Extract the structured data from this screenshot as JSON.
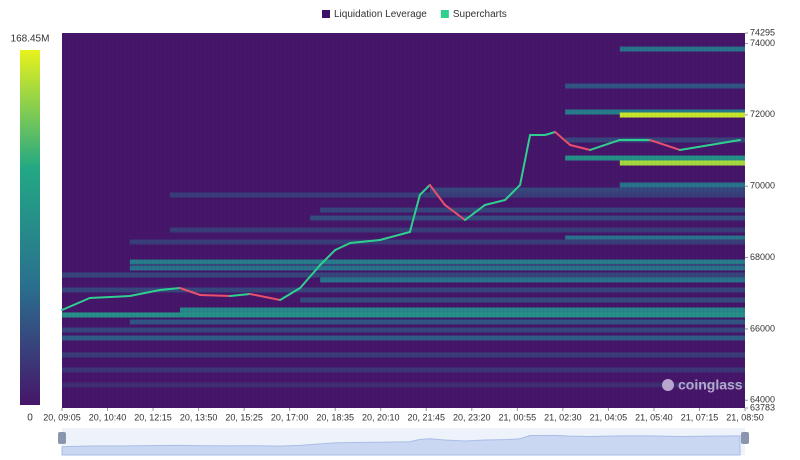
{
  "chart_data": {
    "type": "heatmap",
    "legend": [
      {
        "name": "Liquidation Leverage",
        "color": "#3d1163"
      },
      {
        "name": "Supercharts",
        "color": "#2fd08f"
      }
    ],
    "watermark": "coinglass",
    "background": "#46166a",
    "colorscale": [
      "#46166a",
      "#2a6f8e",
      "#22a884",
      "#e8f21c"
    ],
    "clim": [
      0,
      {
        "value": 168450000,
        "label": "168.45M"
      }
    ],
    "xlim": [
      0,
      15
    ],
    "xticks": [
      {
        "value": 0,
        "label": "20, 09:05"
      },
      {
        "value": 1,
        "label": "20, 10:40"
      },
      {
        "value": 2,
        "label": "20, 12:15"
      },
      {
        "value": 3,
        "label": "20, 13:50"
      },
      {
        "value": 4,
        "label": "20, 15:25"
      },
      {
        "value": 5,
        "label": "20, 17:00"
      },
      {
        "value": 6,
        "label": "20, 18:35"
      },
      {
        "value": 7,
        "label": "20, 20:10"
      },
      {
        "value": 8,
        "label": "20, 21:45"
      },
      {
        "value": 9,
        "label": "20, 23:20"
      },
      {
        "value": 10,
        "label": "21, 00:55"
      },
      {
        "value": 11,
        "label": "21, 02:30"
      },
      {
        "value": 12,
        "label": "21, 04:05"
      },
      {
        "value": 13,
        "label": "21, 05:40"
      },
      {
        "value": 14,
        "label": "21, 07:15"
      },
      {
        "value": 15,
        "label": "21, 08:50"
      }
    ],
    "ylim": [
      63783,
      74295
    ],
    "yticks": [
      63783,
      64000,
      66000,
      68000,
      70000,
      72000,
      74000,
      74295
    ],
    "bands": {
      "prices": [
        73846,
        72810,
        72080,
        71996,
        71296,
        70791,
        70651,
        70035,
        69894,
        69753,
        69333,
        69109,
        68773,
        68549,
        68437,
        67876,
        67708,
        67512,
        67372,
        67092,
        66811,
        66531,
        66391,
        66194,
        65970,
        65746,
        65270,
        64850,
        64430
      ],
      "starts": [
        12.25,
        11.05,
        11.05,
        12.25,
        11.05,
        11.05,
        12.25,
        12.25,
        8.08,
        2.37,
        5.67,
        5.45,
        2.37,
        11.05,
        1.49,
        1.49,
        1.49,
        0,
        5.67,
        0,
        5.23,
        2.59,
        0,
        1.49,
        0,
        0,
        0,
        0,
        0
      ],
      "values": [
        60000000,
        40000000,
        70000000,
        160000000,
        30000000,
        90000000,
        150000000,
        60000000,
        30000000,
        25000000,
        30000000,
        35000000,
        25000000,
        60000000,
        25000000,
        70000000,
        60000000,
        30000000,
        60000000,
        30000000,
        35000000,
        80000000,
        90000000,
        40000000,
        30000000,
        45000000,
        25000000,
        20000000,
        15000000
      ]
    },
    "price": {
      "up_color": "#2fd08f",
      "down_color": "#e8506d",
      "x": [
        0,
        0.61,
        1.49,
        2.15,
        2.59,
        3.03,
        3.69,
        4.13,
        4.79,
        5.23,
        5.67,
        6.0,
        6.33,
        6.98,
        7.64,
        7.86,
        8.08,
        8.41,
        8.85,
        9.29,
        9.73,
        10.06,
        10.28,
        10.61,
        10.83,
        11.16,
        11.6,
        12.25,
        12.91,
        13.57,
        14.23,
        14.89
      ],
      "values": [
        66530,
        66867,
        66923,
        67090,
        67147,
        66951,
        66923,
        66979,
        66811,
        67147,
        67792,
        68212,
        68409,
        68493,
        68717,
        69758,
        70035,
        69474,
        69053,
        69474,
        69614,
        70035,
        71436,
        71436,
        71520,
        71156,
        71016,
        71296,
        71296,
        71016,
        71156,
        71296
      ]
    }
  }
}
